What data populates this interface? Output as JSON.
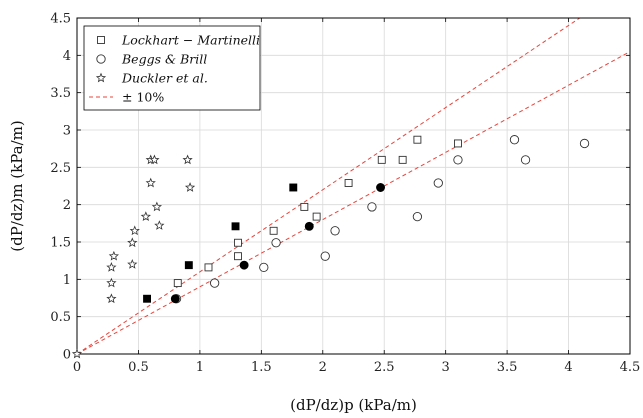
{
  "chart_data": {
    "type": "scatter",
    "xlabel": "(dP/dz)p (kPa/m)",
    "ylabel": "(dP/dz)m (kPa/m)",
    "xlim": [
      0,
      4.5
    ],
    "ylim": [
      0,
      4.5
    ],
    "x_ticks": [
      "0",
      "0.5",
      "1",
      "1.5",
      "2",
      "2.5",
      "3",
      "3.5",
      "4",
      "4.5"
    ],
    "y_ticks": [
      "0",
      "0.5",
      "1",
      "1.5",
      "2",
      "2.5",
      "3",
      "3.5",
      "4",
      "4.5"
    ],
    "grid": true,
    "legend_position": "top-left",
    "series": [
      {
        "name": "Lockhart − Martinelli",
        "marker": "open-square",
        "color": "#333333",
        "x": [
          0.82,
          1.07,
          1.31,
          1.31,
          1.6,
          1.85,
          1.95,
          2.21,
          2.48,
          2.65,
          2.77,
          3.1
        ],
        "y": [
          0.95,
          1.16,
          1.31,
          1.49,
          1.65,
          1.97,
          1.84,
          2.29,
          2.6,
          2.6,
          2.87,
          2.82
        ]
      },
      {
        "name": "Beggs & Brill",
        "marker": "open-circle",
        "color": "#333333",
        "x": [
          0.81,
          1.12,
          1.52,
          1.62,
          2.02,
          2.1,
          2.4,
          2.77,
          2.94,
          3.1,
          3.56,
          3.65,
          4.13
        ],
        "y": [
          0.74,
          0.95,
          1.16,
          1.49,
          1.31,
          1.65,
          1.97,
          1.84,
          2.29,
          2.6,
          2.87,
          2.6,
          2.82
        ]
      },
      {
        "name": "Duckler et al.",
        "marker": "open-star",
        "color": "#333333",
        "x": [
          0.28,
          0.28,
          0.28,
          0.3,
          0.45,
          0.45,
          0.47,
          0.56,
          0.6,
          0.6,
          0.63,
          0.65,
          0.67,
          0.9,
          0.92
        ],
        "y": [
          0.74,
          0.95,
          1.16,
          1.31,
          1.2,
          1.49,
          1.65,
          1.84,
          2.6,
          2.29,
          2.6,
          1.97,
          1.72,
          2.6,
          2.23
        ]
      },
      {
        "marker": "filled-square",
        "color": "#000000",
        "x": [
          0.57,
          0.91,
          1.29,
          1.76
        ],
        "y": [
          0.74,
          1.19,
          1.71,
          2.23
        ]
      },
      {
        "marker": "filled-circle",
        "color": "#000000",
        "x": [
          0.8,
          1.36,
          1.89,
          2.47
        ],
        "y": [
          0.74,
          1.19,
          1.71,
          2.23
        ]
      }
    ],
    "reference_lines": [
      {
        "name": "± 10%",
        "style": "dashed",
        "color": "#e8453c",
        "slope": 1.1,
        "label_in_legend": true
      },
      {
        "style": "dashed",
        "color": "#e8453c",
        "slope": 0.9,
        "label_in_legend": false
      }
    ],
    "origin_marker": {
      "x": 0,
      "y": 0,
      "marker": "open-star"
    }
  },
  "legend": {
    "items": [
      {
        "label": "Lockhart − Martinelli",
        "marker": "open-square",
        "italic": true
      },
      {
        "label": "Beggs & Brill",
        "marker": "open-circle",
        "italic": true
      },
      {
        "label": "Duckler et al.",
        "marker": "open-star",
        "italic": true
      },
      {
        "label": "± 10%",
        "marker": "dashed-line",
        "italic": false
      }
    ]
  },
  "colors": {
    "grid": "#d9d9d9",
    "axis": "#000000",
    "marker": "#333333",
    "ref_line": "#e8453c"
  }
}
